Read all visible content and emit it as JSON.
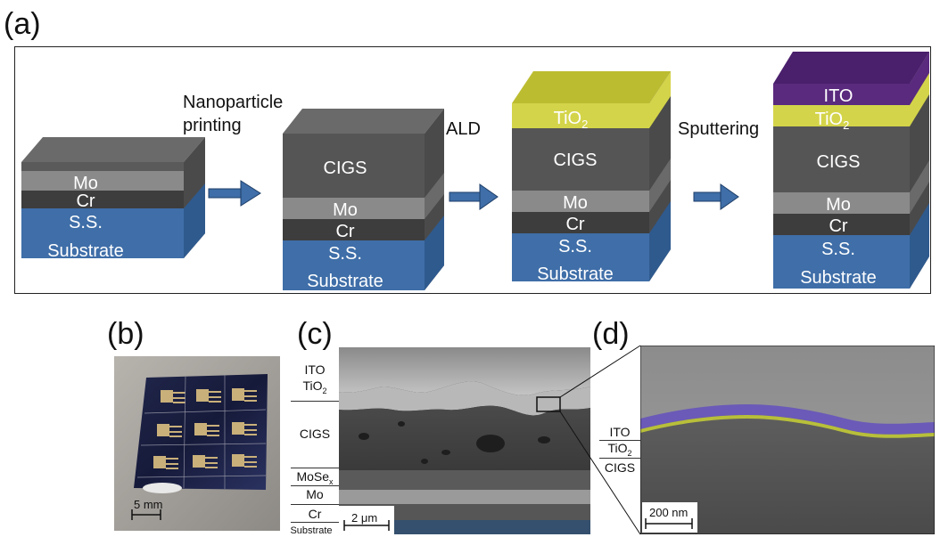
{
  "panels": {
    "a": "(a)",
    "b": "(b)",
    "c": "(c)",
    "d": "(d)"
  },
  "steps": {
    "step1": [
      "Nanoparticle",
      "printing"
    ],
    "step2": "ALD",
    "step3": "Sputtering"
  },
  "stacks": {
    "stack1": [
      "Mo",
      "Cr",
      "S.S.",
      "Substrate"
    ],
    "stack2": [
      "CIGS",
      "Mo",
      "Cr",
      "S.S.",
      "Substrate"
    ],
    "stack3": [
      "TiO",
      "2",
      "CIGS",
      "Mo",
      "Cr",
      "S.S.",
      "Substrate"
    ],
    "stack4": [
      "ITO",
      "TiO",
      "2",
      "CIGS",
      "Mo",
      "Cr",
      "S.S.",
      "Substrate"
    ]
  },
  "panel_b": {
    "scalebar": "5 mm"
  },
  "panel_c": {
    "labels": [
      "ITO",
      "TiO",
      "2",
      "CIGS",
      "MoSe",
      "x",
      "Mo",
      "Cr",
      "Substrate"
    ],
    "scalebar": "2 μm"
  },
  "panel_d": {
    "labels": [
      "ITO",
      "TiO",
      "2",
      "CIGS"
    ],
    "scalebar": "200 nm"
  },
  "colors": {
    "substrate": "#3f6ea8",
    "cr": "#3d3d3d",
    "mo": "#8a8a8a",
    "cigs": "#555555",
    "tio2": "#d4d44a",
    "ito": "#5a2a7e",
    "arrow": "#3f6ea8"
  }
}
